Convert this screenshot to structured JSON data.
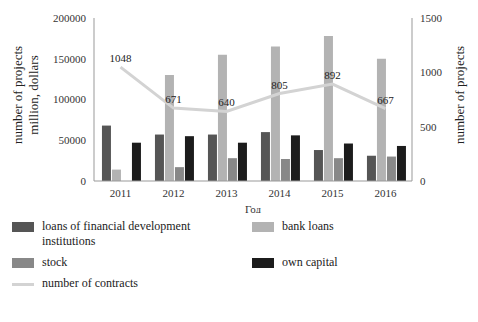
{
  "chart_data": {
    "type": "bar",
    "categories": [
      "2011",
      "2012",
      "2013",
      "2014",
      "2015",
      "2016"
    ],
    "xlabel": "Год",
    "ylabel": [
      "number of projects",
      "million, dollars"
    ],
    "y2label": "number of projects",
    "ylim": [
      0,
      200000
    ],
    "yticks": [
      0,
      50000,
      100000,
      150000,
      200000
    ],
    "y2lim": [
      0,
      1500
    ],
    "y2ticks": [
      0,
      500,
      1000,
      1500
    ],
    "legend": "bottom",
    "series": [
      {
        "name": "loans of financial development institutions",
        "color": "#555555",
        "values": [
          68000,
          57000,
          57000,
          60000,
          38000,
          31000
        ]
      },
      {
        "name": "bank loans",
        "color": "#b3b3b3",
        "values": [
          14000,
          130000,
          155000,
          165000,
          178000,
          150000
        ]
      },
      {
        "name": "stock",
        "color": "#888888",
        "values": [
          null,
          17000,
          28000,
          27000,
          28000,
          30000
        ]
      },
      {
        "name": "own capital",
        "color": "#1c1c1c",
        "values": [
          47000,
          55000,
          47000,
          56000,
          46000,
          43000
        ]
      },
      {
        "name": "number of contracts",
        "type": "line",
        "axis": "y2",
        "color": "#d3d3d3",
        "data_labels": true,
        "values": [
          1048,
          671,
          640,
          805,
          892,
          667
        ]
      }
    ]
  }
}
